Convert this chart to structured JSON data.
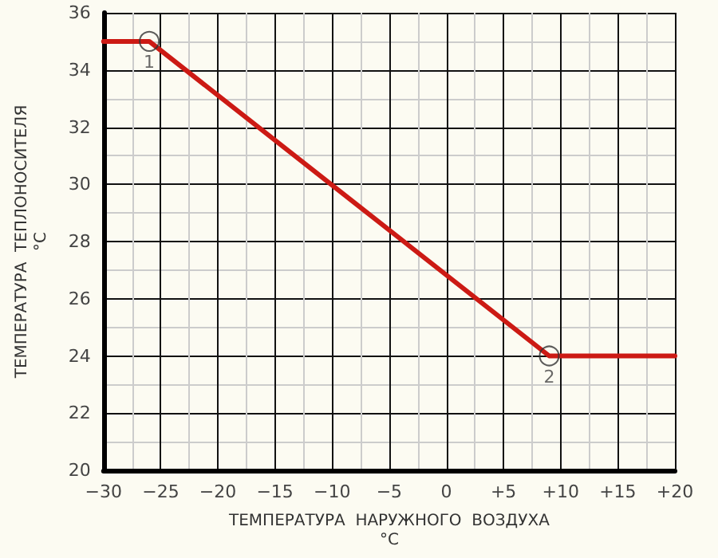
{
  "chart_data": {
    "type": "line",
    "xlabel": "ТЕМПЕРАТУРА  НАРУЖНОГО  ВОЗДУХА\n°C",
    "ylabel": "ТЕМПЕРАТУРА  ТЕПЛОНОСИТЕЛЯ\n°C",
    "x": [
      -30,
      -26,
      9,
      20
    ],
    "series": [
      {
        "color": "#cc1a14",
        "values": [
          35,
          35,
          24,
          24
        ]
      }
    ],
    "xlim": [
      -30,
      20
    ],
    "xticks": [
      {
        "value": -30,
        "label": "−30"
      },
      {
        "value": -25,
        "label": "−25"
      },
      {
        "value": -20,
        "label": "−20"
      },
      {
        "value": -15,
        "label": "−15"
      },
      {
        "value": -10,
        "label": "−10"
      },
      {
        "value": -5,
        "label": "−5"
      },
      0,
      {
        "value": 5,
        "label": "+5"
      },
      {
        "value": 10,
        "label": "+10"
      },
      {
        "value": 15,
        "label": "+15"
      },
      {
        "value": 20,
        "label": "+20"
      }
    ],
    "ylim": [
      20,
      36
    ],
    "yticks": [
      20,
      22,
      24,
      26,
      28,
      30,
      32,
      34,
      36
    ],
    "annotations": [
      {
        "text": "1",
        "x": -26,
        "y": 35
      },
      {
        "text": "2",
        "x": 9,
        "y": 24
      }
    ],
    "grid": true,
    "line_style": "solid"
  }
}
